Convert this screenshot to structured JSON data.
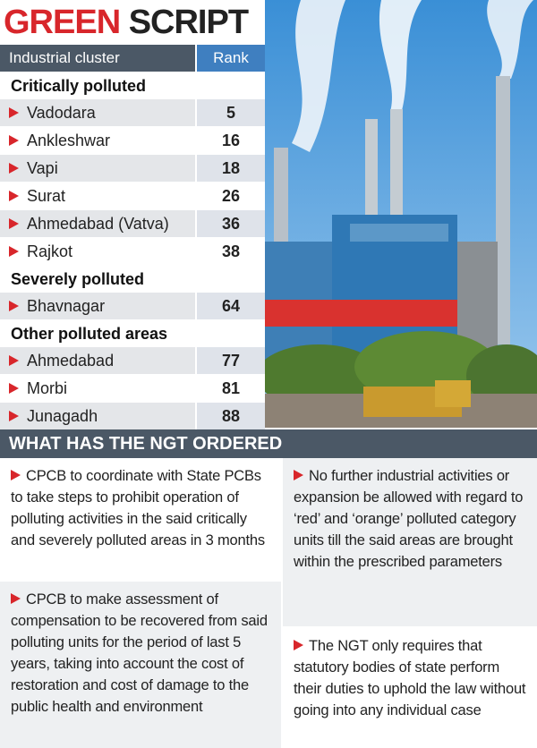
{
  "header": {
    "title_1": "GREEN",
    "title_2": "SCRIPT"
  },
  "table": {
    "columns": [
      "Industrial cluster",
      "Rank"
    ],
    "sections": [
      {
        "title": "Critically polluted",
        "rows": [
          [
            "Vadodara",
            5
          ],
          [
            "Ankleshwar",
            16
          ],
          [
            "Vapi",
            18
          ],
          [
            "Surat",
            26
          ],
          [
            "Ahmedabad (Vatva)",
            36
          ],
          [
            "Rajkot",
            38
          ]
        ]
      },
      {
        "title": "Severely polluted",
        "rows": [
          [
            "Bhavnagar",
            64
          ]
        ]
      },
      {
        "title": "Other polluted areas",
        "rows": [
          [
            "Ahmedabad",
            77
          ],
          [
            "Morbi",
            81
          ],
          [
            "Junagadh",
            88
          ]
        ]
      }
    ]
  },
  "ngt": {
    "title": "WHAT HAS THE NGT ORDERED",
    "left": [
      "CPCB to coordinate with State PCBs to take steps to prohibit operation of polluting activities in the said critically and severely polluted areas in 3 months",
      "CPCB to make assessment of compensation to be recovered from said polluting units for the period of last 5 years, taking into account the cost of restoration and cost of damage to the public health and environment"
    ],
    "right": [
      "No further industrial activities or expansion be allowed with regard to ‘red’ and ‘orange’ polluted category units till the said areas are brought within the prescribed parameters",
      "The NGT only requires that statutory bodies of state perform their duties to uphold the law without going into any individual case"
    ]
  }
}
